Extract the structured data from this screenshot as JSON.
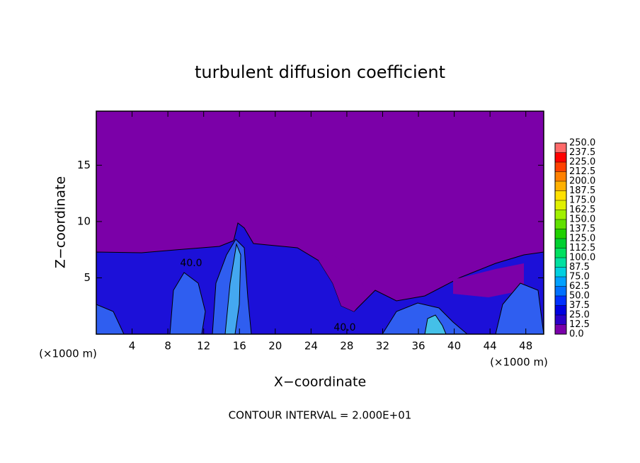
{
  "chart_data": {
    "type": "contour",
    "title": "turbulent diffusion coefficient",
    "xlabel": "X−coordinate",
    "ylabel": "Z−coordinate",
    "xunit": "(×1000 m)",
    "zunit": "(×1000 m)",
    "footnote": "CONTOUR INTERVAL = 2.000E+01",
    "xlim": [
      0,
      50
    ],
    "ylim": [
      0,
      19.8
    ],
    "xticks": [
      4,
      8,
      12,
      16,
      20,
      24,
      28,
      32,
      36,
      40,
      44,
      48
    ],
    "yticks": [
      5,
      10,
      15
    ],
    "contour_labels": [
      "40.0",
      "40.0"
    ],
    "colorbar": {
      "ticks": [
        {
          "value": 0,
          "label": "0.0"
        },
        {
          "value": 12.5,
          "label": "12.5"
        },
        {
          "value": 25,
          "label": "25.0"
        },
        {
          "value": 37.5,
          "label": "37.5"
        },
        {
          "value": 50,
          "label": "50.0"
        },
        {
          "value": 62.5,
          "label": "62.5"
        },
        {
          "value": 75,
          "label": "75.0"
        },
        {
          "value": 87.5,
          "label": "87.5"
        },
        {
          "value": 100,
          "label": "100.0"
        },
        {
          "value": 112.5,
          "label": "112.5"
        },
        {
          "value": 125,
          "label": "125.0"
        },
        {
          "value": 137.5,
          "label": "137.5"
        },
        {
          "value": 150,
          "label": "150.0"
        },
        {
          "value": 162.5,
          "label": "162.5"
        },
        {
          "value": 175,
          "label": "175.0"
        },
        {
          "value": 187.5,
          "label": "187.5"
        },
        {
          "value": 200,
          "label": "200.0"
        },
        {
          "value": 212.5,
          "label": "212.5"
        },
        {
          "value": 225,
          "label": "225.0"
        },
        {
          "value": 237.5,
          "label": "237.5"
        },
        {
          "value": 250,
          "label": "250.0"
        }
      ],
      "colors": [
        "#7a00aa",
        "#2a00c8",
        "#0000e0",
        "#0030ff",
        "#0070ff",
        "#00a0ff",
        "#00d0e0",
        "#00e0a0",
        "#00e060",
        "#00d030",
        "#20d000",
        "#60e000",
        "#a0f000",
        "#e0f000",
        "#ffe000",
        "#ffb000",
        "#ff8000",
        "#ff4000",
        "#ff0000",
        "#ff6a6a"
      ]
    }
  }
}
